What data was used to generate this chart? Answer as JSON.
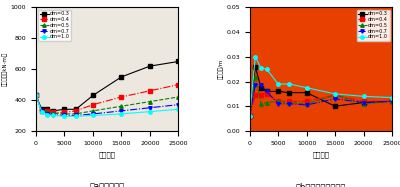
{
  "x_values": [
    0,
    1000,
    2000,
    3000,
    5000,
    7000,
    10000,
    15000,
    20000,
    25000
  ],
  "left_caption": "（a）塔底弯矩",
  "right_caption": "（b）梁端纵向位移⁧",
  "left_ylabel": "塔底弯矩（kN·m）",
  "right_ylabel": "梁端位移/m",
  "xlabel": "阵尼系数",
  "legend_labels": [
    "dm=0.3",
    "dm=0.4",
    "dm=0.5",
    "dm=0.7",
    "dm=1.0"
  ],
  "legend_colors": [
    "black",
    "red",
    "green",
    "blue",
    "cyan"
  ],
  "legend_linestyles": [
    "-",
    "-.",
    "--",
    "-.",
    "-"
  ],
  "legend_markers": [
    "s",
    "s",
    "^",
    "v",
    "o"
  ],
  "left_data": [
    [
      430,
      340,
      340,
      330,
      340,
      340,
      430,
      550,
      620,
      650
    ],
    [
      430,
      330,
      330,
      320,
      320,
      330,
      370,
      420,
      460,
      500
    ],
    [
      430,
      330,
      320,
      315,
      310,
      310,
      330,
      360,
      390,
      420
    ],
    [
      430,
      330,
      310,
      305,
      300,
      300,
      310,
      330,
      350,
      370
    ],
    [
      430,
      325,
      305,
      300,
      295,
      295,
      300,
      310,
      325,
      340
    ]
  ],
  "right_data": [
    [
      0.006,
      0.026,
      0.0175,
      0.016,
      0.016,
      0.0155,
      0.0155,
      0.01,
      0.0115,
      0.012
    ],
    [
      0.006,
      0.0145,
      0.0145,
      0.015,
      0.012,
      0.012,
      0.012,
      0.0145,
      0.012,
      0.012
    ],
    [
      0.006,
      0.022,
      0.011,
      0.0115,
      0.012,
      0.0115,
      0.011,
      0.0145,
      0.011,
      0.012
    ],
    [
      0.006,
      0.0185,
      0.0185,
      0.016,
      0.011,
      0.011,
      0.0105,
      0.013,
      0.0115,
      0.012
    ],
    [
      0.006,
      0.03,
      0.0255,
      0.025,
      0.019,
      0.019,
      0.0175,
      0.015,
      0.014,
      0.0135
    ]
  ],
  "left_ylim": [
    200,
    1000
  ],
  "left_yticks": [
    200,
    400,
    600,
    800,
    1000
  ],
  "right_ylim": [
    0.0,
    0.05
  ],
  "right_yticks": [
    0.0,
    0.01,
    0.02,
    0.03,
    0.04,
    0.05
  ],
  "xlim": [
    0,
    25000
  ],
  "xticks": [
    0,
    5000,
    10000,
    15000,
    20000,
    25000
  ],
  "left_bg": "#ede8df",
  "right_bg": "#e84000",
  "fig_bg": "#ffffff"
}
